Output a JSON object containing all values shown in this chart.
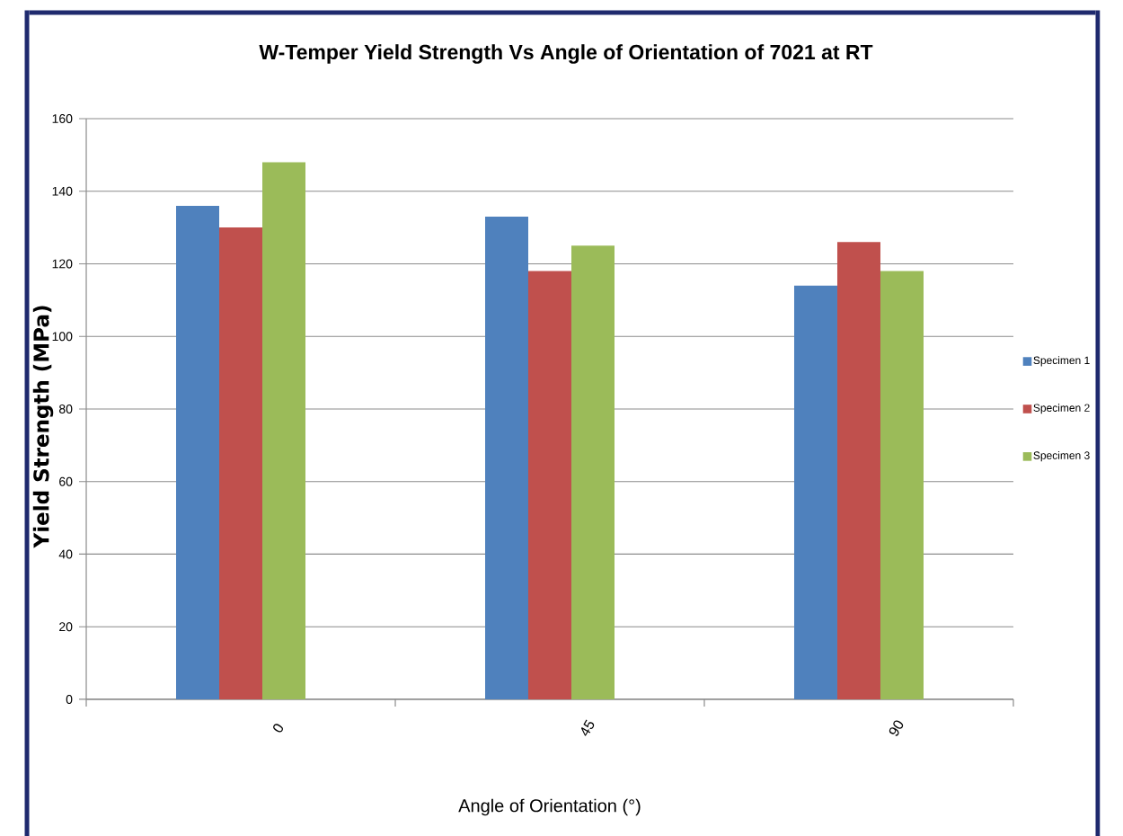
{
  "chart_data": {
    "type": "bar",
    "title": "W-Temper Yield Strength Vs Angle of Orientation of 7021 at RT",
    "xlabel": "Angle of Orientation (°)",
    "ylabel": "Yield Strength (MPa)",
    "categories": [
      "0",
      "45",
      "90"
    ],
    "series": [
      {
        "name": "Specimen 1",
        "color": "#4f81bd",
        "values": [
          136,
          133,
          114
        ]
      },
      {
        "name": "Specimen 2",
        "color": "#c0504d",
        "values": [
          130,
          118,
          126
        ]
      },
      {
        "name": "Specimen 3",
        "color": "#9bbb59",
        "values": [
          148,
          125,
          118
        ]
      }
    ],
    "ylim": [
      0,
      160
    ],
    "yticks": [
      0,
      20,
      40,
      60,
      80,
      100,
      120,
      140,
      160
    ],
    "grid": "y",
    "legend": "right"
  }
}
